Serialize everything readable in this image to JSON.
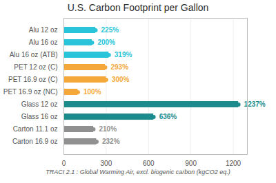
{
  "chart_data": {
    "type": "bar",
    "orientation": "horizontal",
    "title": "U.S. Carbon Footprint per Gallon",
    "subtitle": "TRACI 2.1 : Global Warming Air, excl. biogenic carbon (kgCO2 eq.)",
    "categories": [
      "Alu 12 oz",
      "Alu 16 oz",
      "Alu 16 oz (ATB)",
      "PET 12 oz (C)",
      "PET 16.9 oz (C)",
      "PET 16.9 oz (NC)",
      "Glass 12 oz",
      "Glass 16 oz",
      "Carton 11.1 oz",
      "Carton 16.9 oz"
    ],
    "values": [
      225,
      200,
      319,
      293,
      300,
      100,
      1237,
      636,
      210,
      232
    ],
    "value_labels": [
      "225%",
      "200%",
      "319%",
      "293%",
      "300%",
      "100%",
      "1237%",
      "636%",
      "210%",
      "232%"
    ],
    "colors": [
      "#29c4d9",
      "#29c4d9",
      "#29c4d9",
      "#f5a83a",
      "#f5a83a",
      "#f5a83a",
      "#1b8b8e",
      "#1b8b8e",
      "#909090",
      "#909090"
    ],
    "xlim": [
      0,
      1300
    ],
    "xticks": [
      0,
      300,
      600,
      900,
      1200
    ],
    "grid": true,
    "data_labels": true
  }
}
